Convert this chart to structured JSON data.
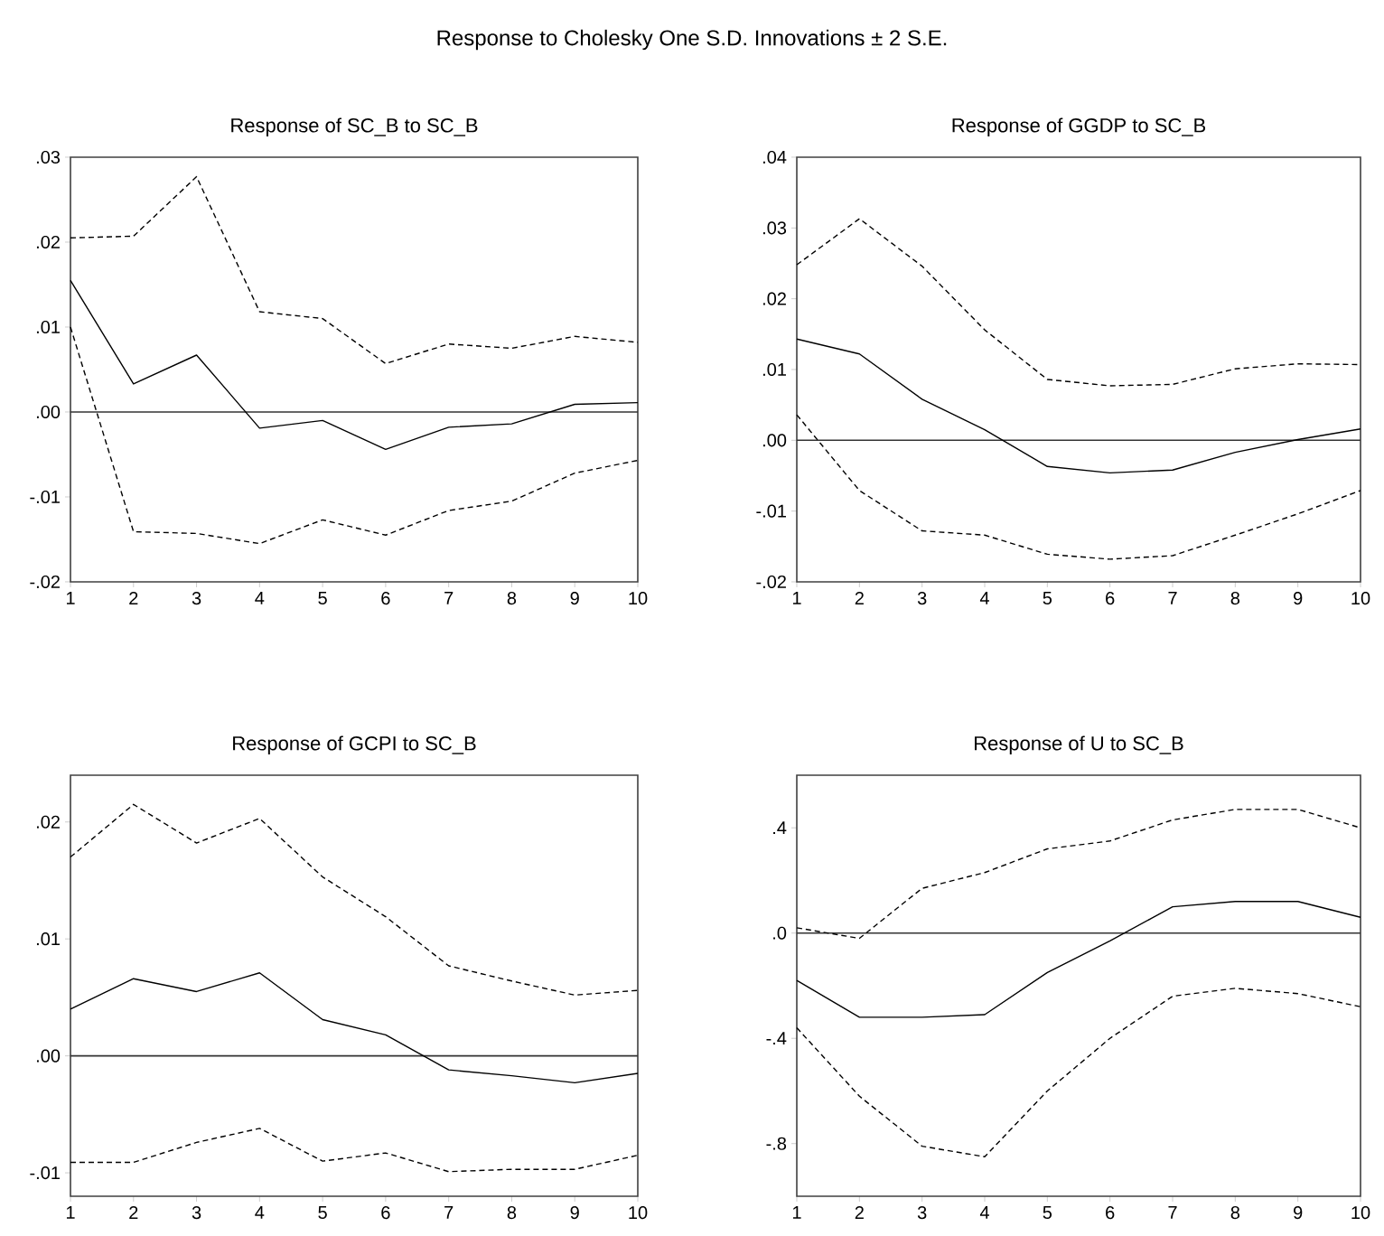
{
  "chart_data": [
    {
      "type": "line",
      "title": "Response of SC_B to SC_B",
      "annotations": [
        "Response to Cholesky One S.D. Innovations ± 2 S.E."
      ],
      "x": [
        1,
        2,
        3,
        4,
        5,
        6,
        7,
        8,
        9,
        10
      ],
      "xlim": [
        1,
        10
      ],
      "xticks": [
        1,
        2,
        3,
        4,
        5,
        6,
        7,
        8,
        9,
        10
      ],
      "ylim": [
        -0.02,
        0.03
      ],
      "yticks": [
        {
          "value": -0.02,
          "label": "-.02"
        },
        {
          "value": -0.01,
          "label": "-.01"
        },
        {
          "value": 0,
          "label": ".00"
        },
        {
          "value": 0.01,
          "label": ".01"
        },
        {
          "value": 0.02,
          "label": ".02"
        },
        {
          "value": 0.03,
          "label": ".03"
        }
      ],
      "ref_lines": [
        {
          "axis": "y",
          "value": 0
        }
      ],
      "series": [
        {
          "color": "#000000",
          "line_style": "solid",
          "values": [
            0.0155,
            0.0033,
            0.0067,
            -0.0019,
            -0.001,
            -0.0044,
            -0.0018,
            -0.0014,
            0.0009,
            0.0011
          ]
        },
        {
          "color": "#000000",
          "line_style": "dashed",
          "values": [
            0.0205,
            0.0207,
            0.0277,
            0.0118,
            0.011,
            0.0057,
            0.008,
            0.0075,
            0.0089,
            0.0082
          ]
        },
        {
          "color": "#000000",
          "line_style": "dashed",
          "values": [
            0.01,
            -0.0141,
            -0.0143,
            -0.0155,
            -0.0127,
            -0.0145,
            -0.0116,
            -0.0105,
            -0.0072,
            -0.0057
          ]
        }
      ]
    },
    {
      "type": "line",
      "title": "Response of GGDP to SC_B",
      "x": [
        1,
        2,
        3,
        4,
        5,
        6,
        7,
        8,
        9,
        10
      ],
      "xlim": [
        1,
        10
      ],
      "xticks": [
        1,
        2,
        3,
        4,
        5,
        6,
        7,
        8,
        9,
        10
      ],
      "ylim": [
        -0.02,
        0.04
      ],
      "yticks": [
        {
          "value": -0.02,
          "label": "-.02"
        },
        {
          "value": -0.01,
          "label": "-.01"
        },
        {
          "value": 0,
          "label": ".00"
        },
        {
          "value": 0.01,
          "label": ".01"
        },
        {
          "value": 0.02,
          "label": ".02"
        },
        {
          "value": 0.03,
          "label": ".03"
        },
        {
          "value": 0.04,
          "label": ".04"
        }
      ],
      "ref_lines": [
        {
          "axis": "y",
          "value": 0
        }
      ],
      "series": [
        {
          "color": "#000000",
          "line_style": "solid",
          "values": [
            0.0143,
            0.0122,
            0.0058,
            0.0015,
            -0.0037,
            -0.0046,
            -0.0042,
            -0.0017,
            0.0001,
            0.0016
          ]
        },
        {
          "color": "#000000",
          "line_style": "dashed",
          "values": [
            0.0248,
            0.0313,
            0.0246,
            0.0156,
            0.0086,
            0.0077,
            0.0079,
            0.0101,
            0.0108,
            0.0107
          ]
        },
        {
          "color": "#000000",
          "line_style": "dashed",
          "values": [
            0.0036,
            -0.0071,
            -0.0128,
            -0.0134,
            -0.0161,
            -0.0168,
            -0.0163,
            -0.0134,
            -0.0104,
            -0.0071
          ]
        }
      ]
    },
    {
      "type": "line",
      "title": "Response of GCPI to SC_B",
      "x": [
        1,
        2,
        3,
        4,
        5,
        6,
        7,
        8,
        9,
        10
      ],
      "xlim": [
        1,
        10
      ],
      "xticks": [
        1,
        2,
        3,
        4,
        5,
        6,
        7,
        8,
        9,
        10
      ],
      "ylim": [
        -0.012,
        0.024
      ],
      "yticks": [
        {
          "value": -0.01,
          "label": "-.01"
        },
        {
          "value": 0,
          "label": ".00"
        },
        {
          "value": 0.01,
          "label": ".01"
        },
        {
          "value": 0.02,
          "label": ".02"
        }
      ],
      "ref_lines": [
        {
          "axis": "y",
          "value": 0
        }
      ],
      "series": [
        {
          "color": "#000000",
          "line_style": "solid",
          "values": [
            0.004,
            0.0066,
            0.0055,
            0.0071,
            0.0031,
            0.0018,
            -0.0012,
            -0.0017,
            -0.0023,
            -0.0015
          ]
        },
        {
          "color": "#000000",
          "line_style": "dashed",
          "values": [
            0.017,
            0.0215,
            0.0182,
            0.0203,
            0.0153,
            0.0119,
            0.0077,
            0.0064,
            0.0052,
            0.0056
          ]
        },
        {
          "color": "#000000",
          "line_style": "dashed",
          "values": [
            -0.0091,
            -0.0091,
            -0.0074,
            -0.0062,
            -0.009,
            -0.0083,
            -0.0099,
            -0.0097,
            -0.0097,
            -0.0085
          ]
        }
      ]
    },
    {
      "type": "line",
      "title": "Response of U to SC_B",
      "x": [
        1,
        2,
        3,
        4,
        5,
        6,
        7,
        8,
        9,
        10
      ],
      "xlim": [
        1,
        10
      ],
      "xticks": [
        1,
        2,
        3,
        4,
        5,
        6,
        7,
        8,
        9,
        10
      ],
      "ylim": [
        -1.0,
        0.6
      ],
      "yticks": [
        {
          "value": -0.8,
          "label": "-.8"
        },
        {
          "value": -0.4,
          "label": "-.4"
        },
        {
          "value": 0,
          "label": ".0"
        },
        {
          "value": 0.4,
          "label": ".4"
        }
      ],
      "ref_lines": [
        {
          "axis": "y",
          "value": 0
        }
      ],
      "series": [
        {
          "color": "#000000",
          "line_style": "solid",
          "values": [
            -0.18,
            -0.32,
            -0.32,
            -0.31,
            -0.15,
            -0.03,
            0.1,
            0.12,
            0.12,
            0.06
          ]
        },
        {
          "color": "#000000",
          "line_style": "dashed",
          "values": [
            0.02,
            -0.02,
            0.17,
            0.23,
            0.32,
            0.35,
            0.43,
            0.47,
            0.47,
            0.4
          ]
        },
        {
          "color": "#000000",
          "line_style": "dashed",
          "values": [
            -0.36,
            -0.62,
            -0.81,
            -0.85,
            -0.6,
            -0.4,
            -0.24,
            -0.21,
            -0.23,
            -0.28
          ]
        }
      ]
    }
  ]
}
